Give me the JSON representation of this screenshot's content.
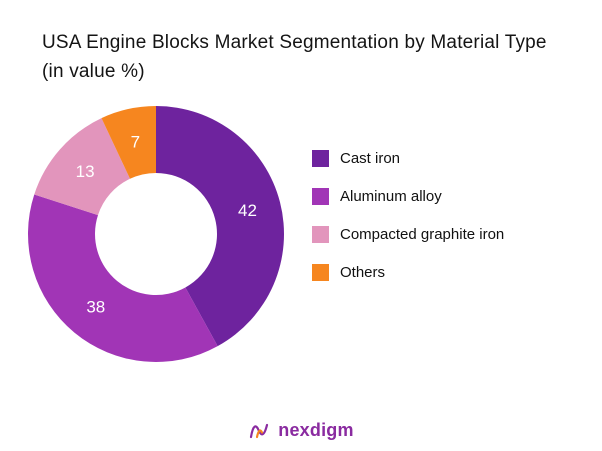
{
  "chart_data": {
    "type": "pie",
    "subtype": "donut",
    "title": "USA Engine Blocks Market Segmentation by Material Type (in value %)",
    "unit": "%",
    "direction": "clockwise",
    "start_angle_deg": 0,
    "donut_hole_ratio": 0.48,
    "legend_position": "right",
    "value_label_color": "#ffffff",
    "segments": [
      {
        "label": "Cast iron",
        "value": 42,
        "color": "#6E239E"
      },
      {
        "label": "Aluminum alloy",
        "value": 38,
        "color": "#A135B6"
      },
      {
        "label": "Compacted graphite iron",
        "value": 13,
        "color": "#E295BC"
      },
      {
        "label": "Others",
        "value": 7,
        "color": "#F6861F"
      }
    ]
  },
  "footer": {
    "brand": "nexdigm",
    "brand_color": "#8A2BA0",
    "logo_accent_color": "#F6861F"
  }
}
